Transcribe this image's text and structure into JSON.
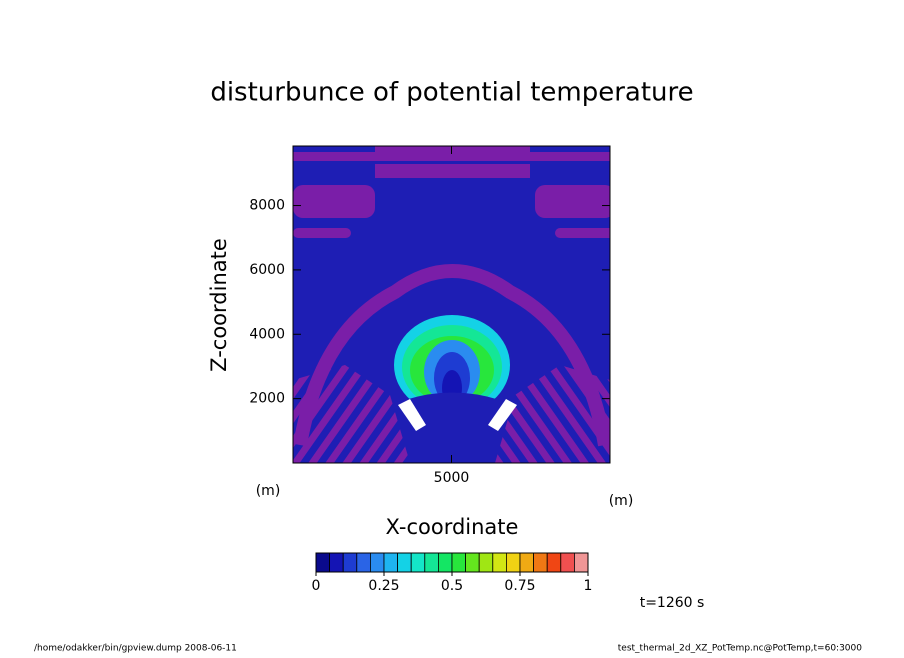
{
  "chart_data": {
    "type": "contour",
    "title": "disturbunce of potential temperature",
    "xlabel": "X-coordinate",
    "ylabel": "Z-coordinate",
    "x_unit": "(m)",
    "y_unit": "(m)",
    "xlim": [
      0,
      10000
    ],
    "xticks": [
      5000
    ],
    "ylim": [
      0,
      9850
    ],
    "yticks": [
      2000,
      4000,
      6000,
      8000
    ],
    "colorbar": {
      "clim": [
        0,
        1
      ],
      "ticks": [
        0,
        0.25,
        0.5,
        0.75,
        1
      ],
      "colors": [
        "#0a0a8c",
        "#1414b4",
        "#1e3cd2",
        "#2a64e6",
        "#2a8cf0",
        "#1eb4f0",
        "#14d2e6",
        "#14e6c8",
        "#14e696",
        "#14e664",
        "#28e63c",
        "#64e61e",
        "#a0e614",
        "#d2e614",
        "#f0d214",
        "#f0aa14",
        "#f07814",
        "#f04614",
        "#f05050",
        "#f09696"
      ]
    },
    "annotation": "t=1260 s",
    "footer_left": "/home/odakker/bin/gpview.dump  2008-06-11",
    "footer_right": "test_thermal_2d_XZ_PotTemp.nc@PotTemp,t=60:3000"
  }
}
